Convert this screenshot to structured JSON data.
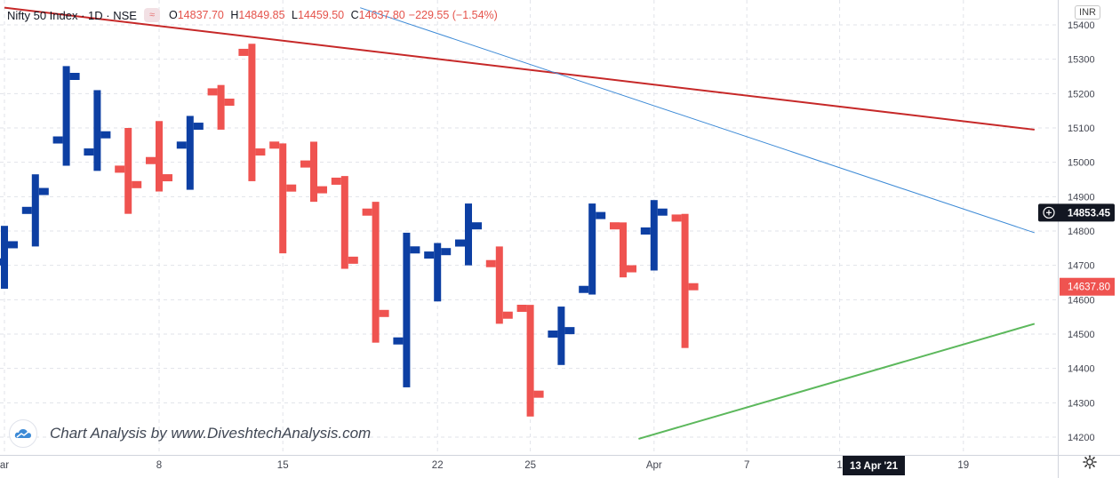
{
  "header": {
    "symbol": "Nifty 50 Index · 1D · NSE",
    "tag": "≈",
    "ohlc": {
      "o_label": "O",
      "o_value": "14837.70",
      "h_label": "H",
      "h_value": "14849.85",
      "l_label": "L",
      "l_value": "14459.50",
      "c_label": "C",
      "c_value": "14637.80"
    },
    "change": "−229.55 (−1.54%)"
  },
  "currency_button": "INR",
  "watermark": "Chart Analysis by www.DiveshtechAnalysis.com",
  "icons": {
    "logo": "cloud-logo-icon",
    "settings": "gear-icon",
    "crosshair": "plus-circle-icon"
  },
  "colors": {
    "up": "#0d3fa3",
    "down": "#ef5350",
    "red_line": "#c62828",
    "blue_line": "#3d8ad6",
    "green_line": "#5cb85c"
  },
  "chart_data": {
    "type": "ohlc-bar",
    "ylim": [
      14165,
      15420
    ],
    "y_ticks": [
      14200,
      14300,
      14400,
      14500,
      14600,
      14700,
      14800,
      14900,
      15000,
      15100,
      15200,
      15300,
      15400
    ],
    "x_ticks": [
      {
        "label": "ar",
        "slot": 0
      },
      {
        "label": "8",
        "slot": 5
      },
      {
        "label": "15",
        "slot": 9
      },
      {
        "label": "22",
        "slot": 14
      },
      {
        "label": "25",
        "slot": 17
      },
      {
        "label": "Apr",
        "slot": 21
      },
      {
        "label": "7",
        "slot": 24
      },
      {
        "label": "1",
        "slot": 27
      },
      {
        "label": "19",
        "slot": 31
      }
    ],
    "crosshair_date": "13 Apr '21",
    "crosshair_price": "14853.45",
    "last_price": "14637.80",
    "bars": [
      {
        "o": 14710,
        "h": 14815,
        "l": 14632,
        "c": 14760,
        "dir": "up"
      },
      {
        "o": 14860,
        "h": 14965,
        "l": 14755,
        "c": 14915,
        "dir": "up"
      },
      {
        "o": 15065,
        "h": 15280,
        "l": 14990,
        "c": 15250,
        "dir": "up"
      },
      {
        "o": 15030,
        "h": 15210,
        "l": 14975,
        "c": 15080,
        "dir": "up"
      },
      {
        "o": 14980,
        "h": 15100,
        "l": 14850,
        "c": 14935,
        "dir": "down"
      },
      {
        "o": 15005,
        "h": 15120,
        "l": 14915,
        "c": 14955,
        "dir": "down"
      },
      {
        "o": 15050,
        "h": 15135,
        "l": 14920,
        "c": 15105,
        "dir": "up"
      },
      {
        "o": 15205,
        "h": 15225,
        "l": 15095,
        "c": 15175,
        "dir": "down"
      },
      {
        "o": 15320,
        "h": 15345,
        "l": 14945,
        "c": 15030,
        "dir": "down"
      },
      {
        "o": 15050,
        "h": 15055,
        "l": 14735,
        "c": 14925,
        "dir": "down"
      },
      {
        "o": 14995,
        "h": 15060,
        "l": 14885,
        "c": 14920,
        "dir": "down"
      },
      {
        "o": 14945,
        "h": 14960,
        "l": 14690,
        "c": 14715,
        "dir": "down"
      },
      {
        "o": 14855,
        "h": 14885,
        "l": 14475,
        "c": 14560,
        "dir": "down"
      },
      {
        "o": 14480,
        "h": 14795,
        "l": 14345,
        "c": 14745,
        "dir": "up"
      },
      {
        "o": 14730,
        "h": 14765,
        "l": 14595,
        "c": 14740,
        "dir": "up"
      },
      {
        "o": 14765,
        "h": 14880,
        "l": 14700,
        "c": 14815,
        "dir": "up"
      },
      {
        "o": 14705,
        "h": 14755,
        "l": 14530,
        "c": 14555,
        "dir": "down"
      },
      {
        "o": 14575,
        "h": 14585,
        "l": 14260,
        "c": 14325,
        "dir": "down"
      },
      {
        "o": 14500,
        "h": 14580,
        "l": 14410,
        "c": 14510,
        "dir": "up"
      },
      {
        "o": 14630,
        "h": 14880,
        "l": 14615,
        "c": 14845,
        "dir": "up"
      },
      {
        "o": 14815,
        "h": 14825,
        "l": 14665,
        "c": 14690,
        "dir": "down"
      },
      {
        "o": 14800,
        "h": 14890,
        "l": 14685,
        "c": 14855,
        "dir": "up"
      },
      {
        "o": 14837.7,
        "h": 14849.85,
        "l": 14459.5,
        "c": 14637.8,
        "dir": "down"
      }
    ],
    "trendlines": [
      {
        "name": "red",
        "from": {
          "slot": 0,
          "y": 15450
        },
        "to": {
          "slot": 33.3,
          "y": 15095
        }
      },
      {
        "name": "blue",
        "from": {
          "slot": 11.5,
          "y": 15450
        },
        "to": {
          "slot": 33.3,
          "y": 14795
        }
      },
      {
        "name": "green",
        "from": {
          "slot": 20.5,
          "y": 14195
        },
        "to": {
          "slot": 33.3,
          "y": 14530
        }
      }
    ]
  }
}
